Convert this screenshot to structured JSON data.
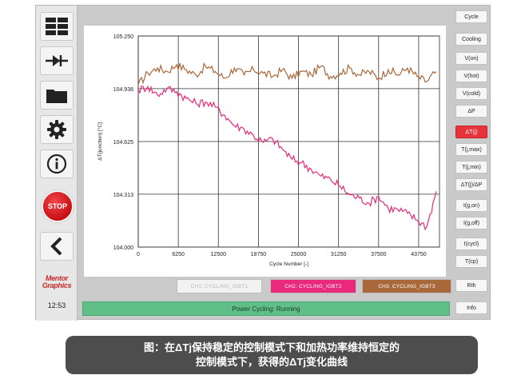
{
  "left_toolbar": {
    "buttons": [
      {
        "icon": "grid-icon"
      },
      {
        "icon": "diode-icon"
      },
      {
        "icon": "folder-icon"
      },
      {
        "icon": "gear-icon"
      },
      {
        "icon": "info-icon"
      }
    ],
    "stop_label": "STOP",
    "back_icon": "chevron-left-icon",
    "logo_line1": "Mentor",
    "logo_line2": "Graphics",
    "clock": "12:53"
  },
  "right_toolbar": {
    "buttons": [
      "Cycle",
      "Cooling",
      "V(on)",
      "V(hot)",
      "V(cold)",
      "ΔP",
      "ΔT(j)",
      "T(j,max)",
      "T(j,min)",
      "ΔT(j)/ΔP",
      "I(g,on)",
      "I(g,off)",
      "I(cycl)",
      "T(cp)",
      "Rth",
      "Info"
    ],
    "active": "ΔT(j)"
  },
  "channels": [
    {
      "label": "CH1: CYCLING_IGBT1",
      "color": "#f2f2f2",
      "text_color": "#bbbbbb"
    },
    {
      "label": "CH2: CYCLING_IGBT2",
      "color": "#e8297c",
      "text_color": "#ffffff"
    },
    {
      "label": "CH3: CYCLING_IGBT3",
      "color": "#a9683a",
      "text_color": "#ffffff"
    }
  ],
  "status": "Power Cycling: Running",
  "caption": {
    "line1": "图：在ΔTj保持稳定的控制模式下和加热功率维持恒定的",
    "line2": "控制模式下，获得的ΔTj变化曲线"
  },
  "chart_data": {
    "type": "line",
    "xlabel": "Cycle Number [-]",
    "ylabel": "ΔT(junction) [°C]",
    "xlim": [
      0,
      47000
    ],
    "ylim": [
      104.0,
      105.25
    ],
    "xticks": [
      0,
      6250,
      12500,
      18750,
      25000,
      31250,
      37500,
      43750
    ],
    "yticks": [
      104.0,
      104.313,
      104.625,
      104.938,
      105.25
    ],
    "ytick_labels": [
      "104.000",
      "104.313",
      "104.625",
      "104.938",
      "105.250"
    ],
    "grid": true,
    "series": [
      {
        "name": "CH3: CYCLING_IGBT3",
        "color": "#a9683a",
        "x": [
          0,
          1500,
          3000,
          4500,
          6000,
          7500,
          9000,
          10500,
          12000,
          13500,
          15000,
          16500,
          18000,
          19500,
          21000,
          22500,
          24000,
          25500,
          27000,
          28500,
          30000,
          31500,
          33000,
          34500,
          36000,
          37500,
          39000,
          40500,
          42000,
          43500,
          45000,
          46500
        ],
        "values": [
          104.96,
          105.03,
          105.06,
          105.04,
          105.08,
          105.05,
          105.02,
          105.07,
          105.04,
          105.0,
          105.06,
          105.02,
          105.05,
          105.03,
          105.01,
          105.05,
          105.0,
          105.04,
          105.02,
          105.07,
          105.01,
          105.03,
          105.06,
          105.02,
          105.04,
          105.0,
          105.05,
          105.02,
          105.06,
          105.01,
          104.98,
          105.04
        ]
      },
      {
        "name": "CH2: CYCLING_IGBT2",
        "color": "#e8297c",
        "x": [
          0,
          1500,
          3000,
          4500,
          6000,
          7500,
          9000,
          10500,
          12000,
          13500,
          15000,
          16500,
          18000,
          19500,
          21000,
          22500,
          24000,
          25500,
          27000,
          28500,
          30000,
          31500,
          33000,
          34500,
          36000,
          37500,
          39000,
          40500,
          42000,
          43500,
          45000,
          46500
        ],
        "values": [
          104.93,
          104.95,
          104.9,
          104.94,
          104.92,
          104.88,
          104.85,
          104.86,
          104.83,
          104.78,
          104.72,
          104.7,
          104.66,
          104.62,
          104.64,
          104.58,
          104.52,
          104.5,
          104.46,
          104.42,
          104.4,
          104.36,
          104.31,
          104.29,
          104.26,
          104.3,
          104.23,
          104.22,
          104.2,
          104.16,
          104.12,
          104.33
        ]
      }
    ]
  }
}
